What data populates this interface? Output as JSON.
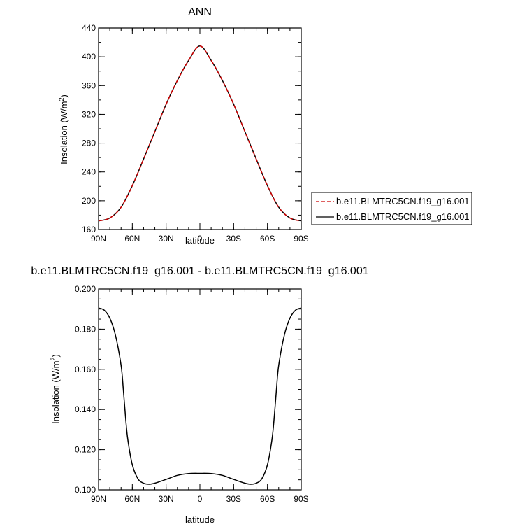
{
  "chart_data": [
    {
      "type": "line",
      "title": "ANN",
      "xlabel": "latitude",
      "ylabel": "Insolation (W/m",
      "ylabel_sup": "2",
      "ylabel_close": ")",
      "xlim": [
        90,
        -90
      ],
      "ylim": [
        160,
        440
      ],
      "yticks": [
        160,
        200,
        240,
        280,
        320,
        360,
        400,
        440
      ],
      "ytick_labels": [
        "160",
        "200",
        "240",
        "280",
        "320",
        "360",
        "400",
        "440"
      ],
      "xticks": [
        90,
        60,
        30,
        0,
        -30,
        -60,
        -90
      ],
      "xtick_labels": [
        "90N",
        "60N",
        "30N",
        "0",
        "30S",
        "60S",
        "90S"
      ],
      "x": [
        90,
        80,
        70,
        60,
        50,
        40,
        30,
        20,
        10,
        0,
        -10,
        -20,
        -30,
        -40,
        -50,
        -60,
        -70,
        -80,
        -90
      ],
      "series": [
        {
          "name": "b.e11.BLMTRC5CN.f19_g16.001",
          "color": "#cc0000",
          "dash": "dashed",
          "values": [
            172,
            176,
            191,
            221,
            258,
            296,
            334,
            367,
            395,
            415,
            395,
            367,
            334,
            296,
            258,
            221,
            191,
            176,
            172
          ]
        },
        {
          "name": "b.e11.BLMTRC5CN.f19_g16.001",
          "color": "#000000",
          "dash": "solid",
          "values": [
            172,
            176,
            191,
            221,
            258,
            296,
            334,
            367,
            395,
            415,
            395,
            367,
            334,
            296,
            258,
            221,
            191,
            176,
            172
          ]
        }
      ],
      "legend_position": "right"
    },
    {
      "type": "line",
      "title": "b.e11.BLMTRC5CN.f19_g16.001 - b.e11.BLMTRC5CN.f19_g16.001",
      "xlabel": "latitude",
      "ylabel": "Insolation (W/m",
      "ylabel_sup": "2",
      "ylabel_close": ")",
      "xlim": [
        90,
        -90
      ],
      "ylim": [
        0.1,
        0.2
      ],
      "yticks": [
        0.1,
        0.12,
        0.14,
        0.16,
        0.18,
        0.2
      ],
      "ytick_labels": [
        "0.100",
        "0.120",
        "0.140",
        "0.160",
        "0.180",
        "0.200"
      ],
      "xticks": [
        90,
        60,
        30,
        0,
        -30,
        -60,
        -90
      ],
      "xtick_labels": [
        "90N",
        "60N",
        "30N",
        "0",
        "30S",
        "60S",
        "90S"
      ],
      "x": [
        90,
        85,
        80,
        75,
        70,
        68,
        66,
        64,
        60,
        55,
        50,
        45,
        40,
        30,
        20,
        10,
        0,
        -10,
        -20,
        -30,
        -40,
        -45,
        -50,
        -55,
        -60,
        -64,
        -66,
        -68,
        -70,
        -75,
        -80,
        -85,
        -90
      ],
      "series": [
        {
          "name": "",
          "color": "#000000",
          "values": [
            0.1905,
            0.1895,
            0.1855,
            0.177,
            0.162,
            0.15,
            0.136,
            0.125,
            0.1125,
            0.1055,
            0.1033,
            0.1028,
            0.1033,
            0.1052,
            0.1072,
            0.1081,
            0.1082,
            0.1081,
            0.1072,
            0.1052,
            0.1033,
            0.1028,
            0.1033,
            0.1055,
            0.1125,
            0.125,
            0.136,
            0.15,
            0.162,
            0.177,
            0.1855,
            0.1895,
            0.1905
          ]
        }
      ]
    }
  ]
}
